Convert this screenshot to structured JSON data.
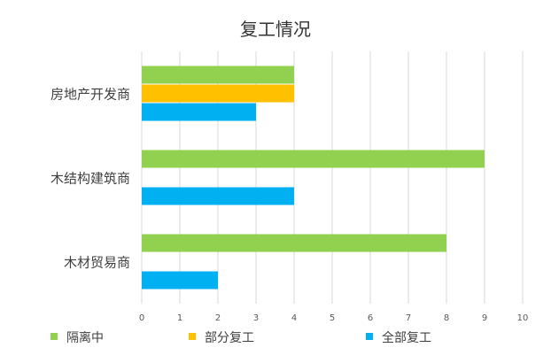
{
  "chart_data": {
    "type": "bar",
    "orientation": "horizontal",
    "title": "复工情况",
    "xlabel": "",
    "ylabel": "",
    "categories": [
      "房地产开发商",
      "木结构建筑商",
      "木材贸易商"
    ],
    "series": [
      {
        "name": "隔离中",
        "color": "#92d050",
        "values": [
          4,
          9,
          8
        ]
      },
      {
        "name": "部分复工",
        "color": "#ffc000",
        "values": [
          4,
          0,
          0
        ]
      },
      {
        "name": "全部复工",
        "color": "#00b0f0",
        "values": [
          3,
          4,
          2
        ]
      }
    ],
    "xlim": [
      0,
      10
    ],
    "ticks": [
      "0",
      "1",
      "2",
      "3",
      "4",
      "5",
      "6",
      "7",
      "8",
      "9",
      "10"
    ],
    "grid": true,
    "legend_position": "bottom"
  }
}
